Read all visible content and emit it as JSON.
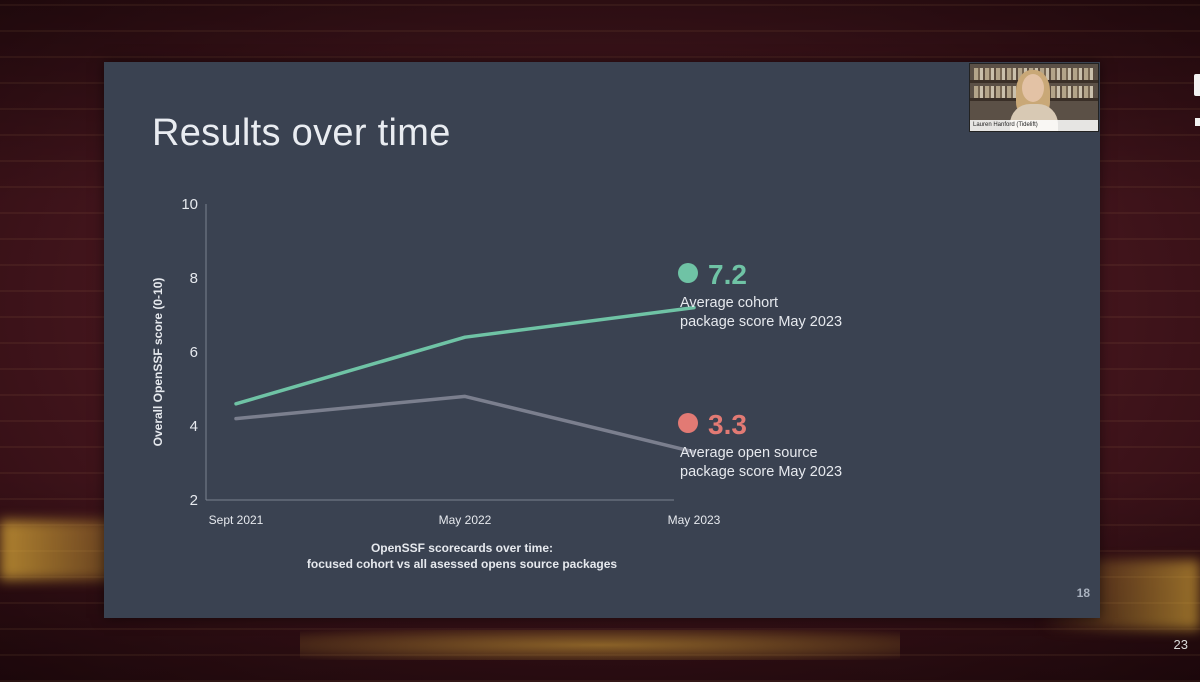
{
  "slide": {
    "title": "Results over time",
    "number": "18"
  },
  "presenter": {
    "name": "Lauren Hanford (Tidelift)"
  },
  "page_counter": "23",
  "colors": {
    "cohort": "#6fc3a5",
    "open_source": "#7b7f8e",
    "cohort_dot": "#6fc3a5",
    "open_source_dot": "#e27a74",
    "slide_bg": "#3a4251"
  },
  "chart_data": {
    "type": "line",
    "ylabel": "Overall OpenSSF score (0-10)",
    "xlabel": "OpenSSF scorecards over time:\nfocused cohort vs all asessed opens source packages",
    "categories": [
      "Sept 2021",
      "May 2022",
      "May 2023"
    ],
    "ylim": [
      2,
      10
    ],
    "yticks": [
      2,
      4,
      6,
      8,
      10
    ],
    "series": [
      {
        "key": "cohort",
        "values": [
          4.6,
          6.4,
          7.2
        ]
      },
      {
        "key": "open_source",
        "values": [
          4.2,
          4.8,
          3.3
        ]
      }
    ],
    "annotations": [
      {
        "series": "cohort",
        "value": "7.2",
        "text_line1": "Average cohort",
        "text_line2": "package score May 2023"
      },
      {
        "series": "open_source",
        "value": "3.3",
        "text_line1": "Average open source",
        "text_line2": "package score May 2023"
      }
    ]
  }
}
